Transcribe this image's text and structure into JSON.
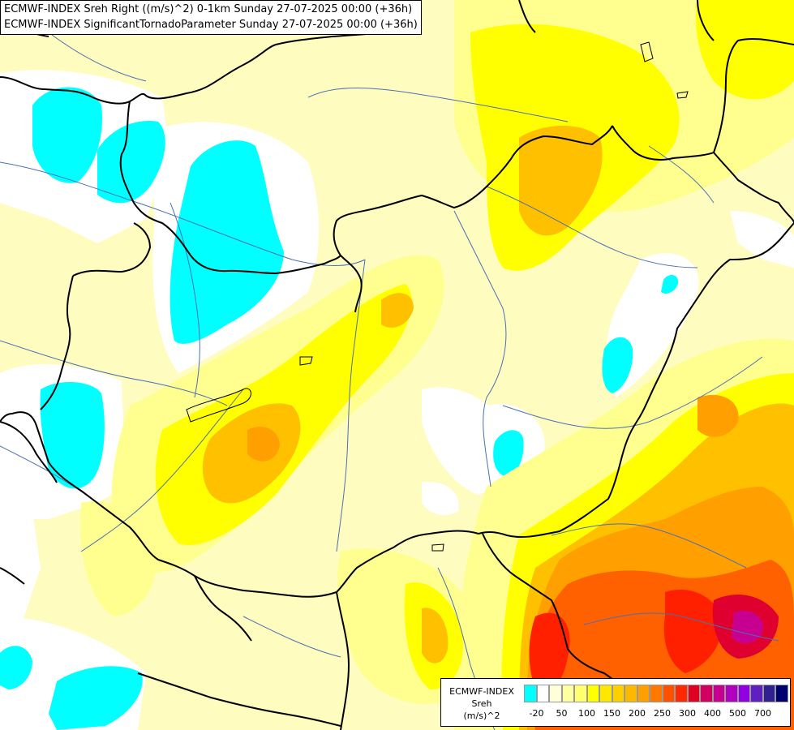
{
  "title": {
    "line1": "ECMWF-INDEX Sreh Right ((m/s)^2) 0-1km Sunday 27-07-2025 00:00 (+36h)",
    "line2": "ECMWF-INDEX SignificantTornadoParameter Sunday 27-07-2025 00:00 (+36h)"
  },
  "legend": {
    "source": "ECMWF-INDEX",
    "variable": "Sreh",
    "unit": "(m/s)^2",
    "colors": [
      "#00ffff",
      "#ffffff",
      "#ffffd8",
      "#ffffa0",
      "#ffff70",
      "#ffff00",
      "#ffe800",
      "#ffd000",
      "#ffb800",
      "#ffa000",
      "#ff7800",
      "#ff5000",
      "#ff2800",
      "#e00020",
      "#d00060",
      "#c80090",
      "#b000c0",
      "#9000e0",
      "#6020c0",
      "#302090",
      "#000070"
    ],
    "tick_labels": [
      "-20",
      "50",
      "100",
      "150",
      "200",
      "250",
      "300",
      "400",
      "500",
      "700"
    ]
  },
  "colors": {
    "background": "#fffcc0",
    "cyan": "#00ffff",
    "yellow": "#ffff00",
    "orange": "#ffa000",
    "red": "#ff2800",
    "magenta": "#c80090",
    "country_border": "#000000",
    "rivers": "#4a6fb5"
  }
}
